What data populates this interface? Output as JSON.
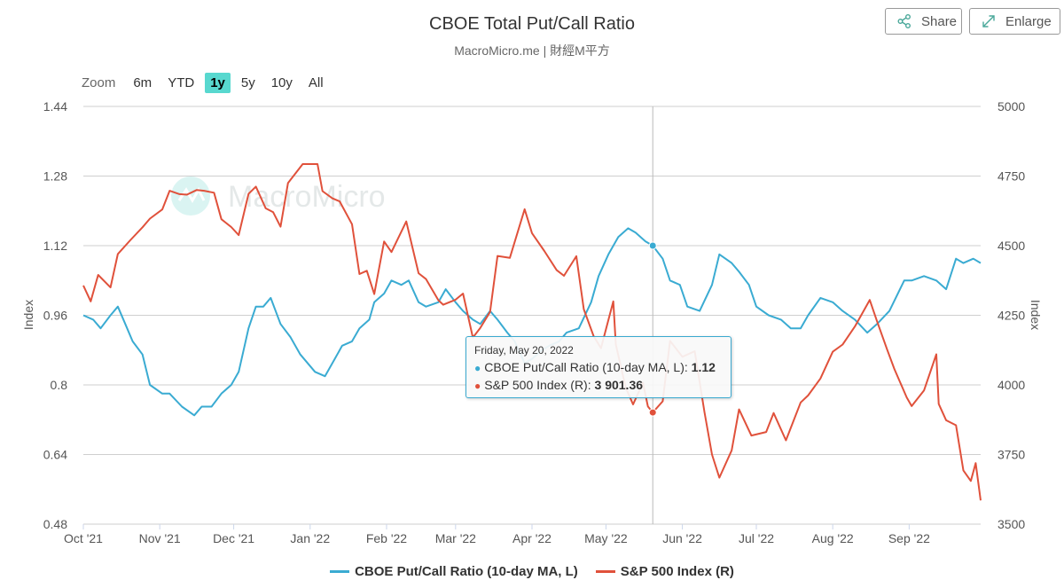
{
  "header": {
    "title": "CBOE Total Put/Call Ratio",
    "subtitle": "MacroMicro.me | 財經M平方",
    "share_label": "Share",
    "enlarge_label": "Enlarge"
  },
  "zoom": {
    "label": "Zoom",
    "options": [
      "6m",
      "YTD",
      "1y",
      "5y",
      "10y",
      "All"
    ],
    "selected": "1y"
  },
  "watermark": "MacroMicro",
  "colors": {
    "putcall": "#3aabd2",
    "sp500": "#e0513b",
    "active_zoom": "#58d8cf"
  },
  "tooltip": {
    "date": "Friday, May 20, 2022",
    "series1_label": "CBOE Put/Call Ratio (10-day MA, L):",
    "series1_value": "1.12",
    "series2_label": "S&P 500 Index (R):",
    "series2_value": "3 901.36"
  },
  "chart_data": {
    "type": "line",
    "title": "CBOE Total Put/Call Ratio",
    "subtitle": "MacroMicro.me | 財經M平方",
    "x_range": [
      "2021-10-01",
      "2022-09-30"
    ],
    "x_ticks": [
      "Oct '21",
      "Nov '21",
      "Dec '21",
      "Jan '22",
      "Feb '22",
      "Mar '22",
      "Apr '22",
      "May '22",
      "Jun '22",
      "Jul '22",
      "Aug '22",
      "Sep '22"
    ],
    "y_left": {
      "label": "Index",
      "range": [
        0.48,
        1.44
      ],
      "ticks": [
        0.48,
        0.64,
        0.8,
        0.96,
        1.12,
        1.28,
        1.44
      ]
    },
    "y_right": {
      "label": "Index",
      "range": [
        3500,
        5000
      ],
      "ticks": [
        3500,
        3750,
        4000,
        4250,
        4500,
        4750,
        5000
      ]
    },
    "grid": true,
    "legend": "bottom-center",
    "crosshair_date": "2022-05-20",
    "series": [
      {
        "name": "CBOE Put/Call Ratio (10-day MA, L)",
        "axis": "left",
        "points": [
          [
            "2021-10-01",
            0.96
          ],
          [
            "2021-10-05",
            0.95
          ],
          [
            "2021-10-08",
            0.93
          ],
          [
            "2021-10-12",
            0.96
          ],
          [
            "2021-10-15",
            0.98
          ],
          [
            "2021-10-18",
            0.94
          ],
          [
            "2021-10-21",
            0.9
          ],
          [
            "2021-10-25",
            0.87
          ],
          [
            "2021-10-28",
            0.8
          ],
          [
            "2021-11-02",
            0.78
          ],
          [
            "2021-11-05",
            0.78
          ],
          [
            "2021-11-10",
            0.75
          ],
          [
            "2021-11-15",
            0.73
          ],
          [
            "2021-11-18",
            0.75
          ],
          [
            "2021-11-22",
            0.75
          ],
          [
            "2021-11-26",
            0.78
          ],
          [
            "2021-11-30",
            0.8
          ],
          [
            "2021-12-03",
            0.83
          ],
          [
            "2021-12-07",
            0.93
          ],
          [
            "2021-12-10",
            0.98
          ],
          [
            "2021-12-13",
            0.98
          ],
          [
            "2021-12-16",
            1.0
          ],
          [
            "2021-12-20",
            0.94
          ],
          [
            "2021-12-24",
            0.91
          ],
          [
            "2021-12-28",
            0.87
          ],
          [
            "2022-01-03",
            0.83
          ],
          [
            "2022-01-07",
            0.82
          ],
          [
            "2022-01-11",
            0.86
          ],
          [
            "2022-01-14",
            0.89
          ],
          [
            "2022-01-18",
            0.9
          ],
          [
            "2022-01-21",
            0.93
          ],
          [
            "2022-01-25",
            0.95
          ],
          [
            "2022-01-27",
            0.99
          ],
          [
            "2022-01-31",
            1.01
          ],
          [
            "2022-02-03",
            1.04
          ],
          [
            "2022-02-07",
            1.03
          ],
          [
            "2022-02-10",
            1.04
          ],
          [
            "2022-02-14",
            0.99
          ],
          [
            "2022-02-17",
            0.98
          ],
          [
            "2022-02-22",
            0.99
          ],
          [
            "2022-02-25",
            1.02
          ],
          [
            "2022-03-01",
            0.99
          ],
          [
            "2022-03-04",
            0.97
          ],
          [
            "2022-03-08",
            0.95
          ],
          [
            "2022-03-11",
            0.94
          ],
          [
            "2022-03-15",
            0.97
          ],
          [
            "2022-03-18",
            0.95
          ],
          [
            "2022-03-22",
            0.92
          ],
          [
            "2022-03-25",
            0.9
          ],
          [
            "2022-03-29",
            0.85
          ],
          [
            "2022-04-01",
            0.86
          ],
          [
            "2022-04-05",
            0.88
          ],
          [
            "2022-04-08",
            0.89
          ],
          [
            "2022-04-12",
            0.9
          ],
          [
            "2022-04-15",
            0.92
          ],
          [
            "2022-04-20",
            0.93
          ],
          [
            "2022-04-25",
            0.99
          ],
          [
            "2022-04-28",
            1.05
          ],
          [
            "2022-05-02",
            1.1
          ],
          [
            "2022-05-06",
            1.14
          ],
          [
            "2022-05-10",
            1.16
          ],
          [
            "2022-05-13",
            1.15
          ],
          [
            "2022-05-17",
            1.13
          ],
          [
            "2022-05-20",
            1.12
          ],
          [
            "2022-05-24",
            1.09
          ],
          [
            "2022-05-27",
            1.04
          ],
          [
            "2022-05-31",
            1.03
          ],
          [
            "2022-06-03",
            0.98
          ],
          [
            "2022-06-08",
            0.97
          ],
          [
            "2022-06-13",
            1.03
          ],
          [
            "2022-06-16",
            1.1
          ],
          [
            "2022-06-21",
            1.08
          ],
          [
            "2022-06-24",
            1.06
          ],
          [
            "2022-06-28",
            1.03
          ],
          [
            "2022-07-01",
            0.98
          ],
          [
            "2022-07-06",
            0.96
          ],
          [
            "2022-07-11",
            0.95
          ],
          [
            "2022-07-15",
            0.93
          ],
          [
            "2022-07-19",
            0.93
          ],
          [
            "2022-07-22",
            0.96
          ],
          [
            "2022-07-27",
            1.0
          ],
          [
            "2022-08-01",
            0.99
          ],
          [
            "2022-08-05",
            0.97
          ],
          [
            "2022-08-10",
            0.95
          ],
          [
            "2022-08-15",
            0.92
          ],
          [
            "2022-08-19",
            0.94
          ],
          [
            "2022-08-24",
            0.97
          ],
          [
            "2022-08-30",
            1.04
          ],
          [
            "2022-09-02",
            1.04
          ],
          [
            "2022-09-07",
            1.05
          ],
          [
            "2022-09-12",
            1.04
          ],
          [
            "2022-09-16",
            1.02
          ],
          [
            "2022-09-20",
            1.09
          ],
          [
            "2022-09-23",
            1.08
          ],
          [
            "2022-09-27",
            1.09
          ],
          [
            "2022-09-30",
            1.08
          ]
        ]
      },
      {
        "name": "S&P 500 Index (R)",
        "axis": "right",
        "points": [
          [
            "2021-10-01",
            4357
          ],
          [
            "2021-10-04",
            4300
          ],
          [
            "2021-10-07",
            4395
          ],
          [
            "2021-10-12",
            4350
          ],
          [
            "2021-10-15",
            4470
          ],
          [
            "2021-10-20",
            4519
          ],
          [
            "2021-10-25",
            4566
          ],
          [
            "2021-10-28",
            4597
          ],
          [
            "2021-11-02",
            4630
          ],
          [
            "2021-11-05",
            4697
          ],
          [
            "2021-11-09",
            4685
          ],
          [
            "2021-11-12",
            4683
          ],
          [
            "2021-11-16",
            4700
          ],
          [
            "2021-11-19",
            4697
          ],
          [
            "2021-11-23",
            4690
          ],
          [
            "2021-11-26",
            4595
          ],
          [
            "2021-11-30",
            4567
          ],
          [
            "2021-12-03",
            4538
          ],
          [
            "2021-12-07",
            4686
          ],
          [
            "2021-12-10",
            4712
          ],
          [
            "2021-12-14",
            4634
          ],
          [
            "2021-12-17",
            4620
          ],
          [
            "2021-12-20",
            4568
          ],
          [
            "2021-12-23",
            4725
          ],
          [
            "2021-12-29",
            4793
          ],
          [
            "2022-01-04",
            4793
          ],
          [
            "2022-01-06",
            4696
          ],
          [
            "2022-01-10",
            4670
          ],
          [
            "2022-01-13",
            4659
          ],
          [
            "2022-01-18",
            4577
          ],
          [
            "2022-01-21",
            4398
          ],
          [
            "2022-01-24",
            4410
          ],
          [
            "2022-01-27",
            4326
          ],
          [
            "2022-01-31",
            4515
          ],
          [
            "2022-02-03",
            4477
          ],
          [
            "2022-02-09",
            4587
          ],
          [
            "2022-02-14",
            4401
          ],
          [
            "2022-02-17",
            4380
          ],
          [
            "2022-02-22",
            4304
          ],
          [
            "2022-02-24",
            4288
          ],
          [
            "2022-03-01",
            4306
          ],
          [
            "2022-03-04",
            4328
          ],
          [
            "2022-03-08",
            4170
          ],
          [
            "2022-03-11",
            4204
          ],
          [
            "2022-03-15",
            4262
          ],
          [
            "2022-03-18",
            4463
          ],
          [
            "2022-03-23",
            4456
          ],
          [
            "2022-03-29",
            4631
          ],
          [
            "2022-04-01",
            4545
          ],
          [
            "2022-04-06",
            4481
          ],
          [
            "2022-04-11",
            4412
          ],
          [
            "2022-04-14",
            4392
          ],
          [
            "2022-04-19",
            4462
          ],
          [
            "2022-04-22",
            4272
          ],
          [
            "2022-04-26",
            4175
          ],
          [
            "2022-04-29",
            4132
          ],
          [
            "2022-05-04",
            4300
          ],
          [
            "2022-05-05",
            4146
          ],
          [
            "2022-05-09",
            3991
          ],
          [
            "2022-05-12",
            3930
          ],
          [
            "2022-05-16",
            4008
          ],
          [
            "2022-05-18",
            3923
          ],
          [
            "2022-05-20",
            3901
          ],
          [
            "2022-05-24",
            3941
          ],
          [
            "2022-05-27",
            4158
          ],
          [
            "2022-06-01",
            4101
          ],
          [
            "2022-06-06",
            4121
          ],
          [
            "2022-06-10",
            3901
          ],
          [
            "2022-06-13",
            3750
          ],
          [
            "2022-06-16",
            3667
          ],
          [
            "2022-06-21",
            3765
          ],
          [
            "2022-06-24",
            3912
          ],
          [
            "2022-06-29",
            3818
          ],
          [
            "2022-07-05",
            3831
          ],
          [
            "2022-07-08",
            3899
          ],
          [
            "2022-07-13",
            3801
          ],
          [
            "2022-07-19",
            3937
          ],
          [
            "2022-07-22",
            3962
          ],
          [
            "2022-07-27",
            4023
          ],
          [
            "2022-08-01",
            4119
          ],
          [
            "2022-08-05",
            4145
          ],
          [
            "2022-08-10",
            4210
          ],
          [
            "2022-08-16",
            4305
          ],
          [
            "2022-08-19",
            4228
          ],
          [
            "2022-08-23",
            4128
          ],
          [
            "2022-08-26",
            4057
          ],
          [
            "2022-08-31",
            3955
          ],
          [
            "2022-09-02",
            3924
          ],
          [
            "2022-09-07",
            3980
          ],
          [
            "2022-09-12",
            4110
          ],
          [
            "2022-09-13",
            3932
          ],
          [
            "2022-09-16",
            3873
          ],
          [
            "2022-09-20",
            3855
          ],
          [
            "2022-09-23",
            3693
          ],
          [
            "2022-09-26",
            3655
          ],
          [
            "2022-09-28",
            3719
          ],
          [
            "2022-09-30",
            3585
          ]
        ]
      }
    ]
  }
}
